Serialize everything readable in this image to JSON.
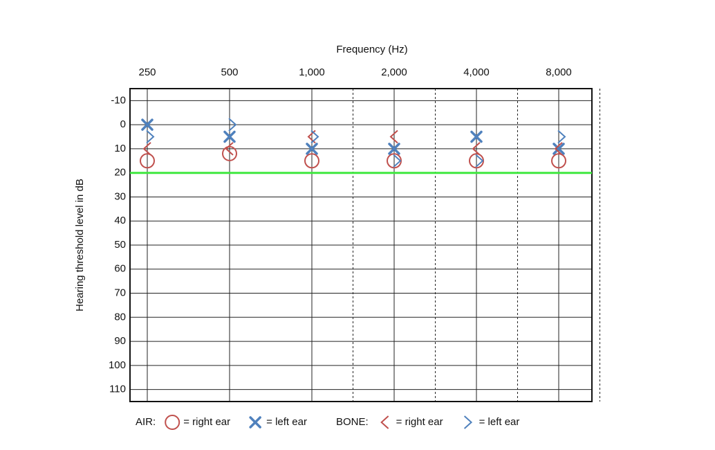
{
  "chart_data": {
    "type": "audiogram",
    "x_label": "Frequency (Hz)",
    "y_label": "Hearing threshold level in dB",
    "categories": [
      "250",
      "500",
      "1,000",
      "2,000",
      "4,000",
      "8,000"
    ],
    "ylim": [
      -15,
      115
    ],
    "invert_y": true,
    "yticks": [
      -10,
      0,
      10,
      20,
      30,
      40,
      50,
      60,
      70,
      80,
      90,
      100,
      110
    ],
    "grid": true,
    "reference_line": {
      "value": 20,
      "color": "#3ee83e"
    },
    "groups": [
      {
        "name": "AIR:",
        "series": [
          {
            "name": "= right ear",
            "color": "#c0504d",
            "marker": "circle",
            "values": [
              15,
              12,
              15,
              15,
              15,
              15
            ]
          },
          {
            "name": "= left ear",
            "color": "#4f81bd",
            "marker": "x",
            "values": [
              0,
              5,
              10,
              10,
              5,
              10
            ]
          }
        ]
      },
      {
        "name": "BONE:",
        "series": [
          {
            "name": "= right ear",
            "color": "#c0504d",
            "marker": "<",
            "values": [
              10,
              10,
              5,
              5,
              10,
              10
            ]
          },
          {
            "name": "= left ear",
            "color": "#4f81bd",
            "marker": ">",
            "values": [
              5,
              0,
              5,
              15,
              15,
              5
            ]
          }
        ]
      }
    ]
  }
}
